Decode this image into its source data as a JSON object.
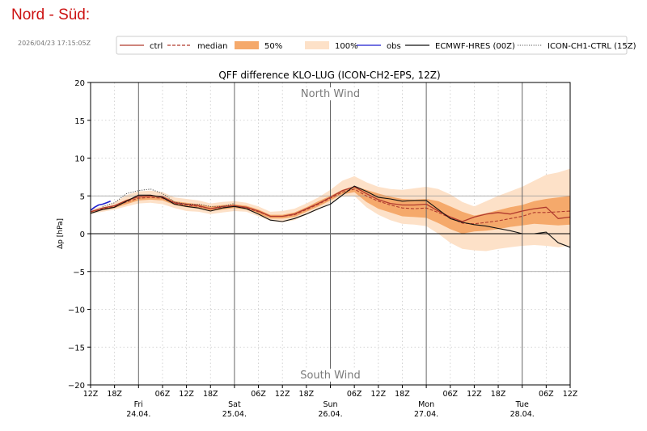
{
  "page": {
    "title": "Nord - Süd:",
    "timestamp": "2026/04/23 17:15:05Z"
  },
  "legend": {
    "items": [
      {
        "label": "ctrl",
        "style": "solid-line",
        "color": "#b03a2e"
      },
      {
        "label": "median",
        "style": "dashed-line",
        "color": "#b03a2e"
      },
      {
        "label": "50%",
        "style": "fill",
        "color": "#f5a96b"
      },
      {
        "label": "100%",
        "style": "fill",
        "color": "#fde1c8"
      },
      {
        "label": "obs",
        "style": "solid-line",
        "color": "#1f1fd0"
      },
      {
        "label": "ECMWF-HRES (00Z)",
        "style": "solid-line",
        "color": "#111111"
      },
      {
        "label": "ICON-CH1-CTRL (15Z)",
        "style": "dotted-line",
        "color": "#555555"
      }
    ]
  },
  "chart_data": {
    "type": "line",
    "title": "QFF difference KLO-LUG (ICON-CH2-EPS, 12Z)",
    "ylabel": "Δp [hPa]",
    "xlabel": "",
    "ylim": [
      -20,
      20
    ],
    "xlim": [
      0,
      120
    ],
    "x_unit": "hours since 2026-04-23 12Z",
    "yticks": [
      -20,
      -15,
      -10,
      -5,
      0,
      5,
      10,
      15,
      20
    ],
    "ytick_labels": [
      "−20",
      "−15",
      "−10",
      "−5",
      "0",
      "5",
      "10",
      "15",
      "20"
    ],
    "xticks": [
      {
        "x": 0,
        "label": "12Z"
      },
      {
        "x": 6,
        "label": "18Z"
      },
      {
        "x": 18,
        "label": "06Z"
      },
      {
        "x": 24,
        "label": "12Z"
      },
      {
        "x": 30,
        "label": "18Z"
      },
      {
        "x": 42,
        "label": "06Z"
      },
      {
        "x": 48,
        "label": "12Z"
      },
      {
        "x": 54,
        "label": "18Z"
      },
      {
        "x": 66,
        "label": "06Z"
      },
      {
        "x": 72,
        "label": "12Z"
      },
      {
        "x": 78,
        "label": "18Z"
      },
      {
        "x": 90,
        "label": "06Z"
      },
      {
        "x": 96,
        "label": "12Z"
      },
      {
        "x": 102,
        "label": "18Z"
      },
      {
        "x": 114,
        "label": "06Z"
      },
      {
        "x": 120,
        "label": "12Z"
      }
    ],
    "day_labels": [
      {
        "x": 12,
        "day": "Fri",
        "date": "24.04."
      },
      {
        "x": 36,
        "day": "Sat",
        "date": "25.04."
      },
      {
        "x": 60,
        "day": "Sun",
        "date": "26.04."
      },
      {
        "x": 84,
        "day": "Mon",
        "date": "27.04."
      },
      {
        "x": 108,
        "day": "Tue",
        "date": "28.04."
      }
    ],
    "day_lines": [
      12,
      36,
      60,
      84,
      108
    ],
    "reference_lines": [
      {
        "y": 0,
        "style": "solid",
        "color": "#000000"
      },
      {
        "y": 5,
        "style": "solid",
        "color": "#999999"
      },
      {
        "y": -5,
        "style": "solid",
        "color": "#999999"
      }
    ],
    "annotations": [
      {
        "text": "North Wind",
        "x": 60,
        "y": 18.6
      },
      {
        "text": "South Wind",
        "x": 60,
        "y": -18.6
      }
    ],
    "grid": true,
    "bands": [
      {
        "name": "100%",
        "color": "#fde1c8",
        "x": [
          0,
          6,
          9,
          12,
          15,
          18,
          21,
          24,
          27,
          30,
          33,
          36,
          39,
          42,
          45,
          48,
          51,
          54,
          57,
          60,
          63,
          66,
          69,
          72,
          75,
          78,
          81,
          84,
          87,
          90,
          93,
          96,
          99,
          102,
          105,
          108,
          111,
          114,
          117,
          120
        ],
        "upper": [
          3.2,
          4.1,
          5.1,
          5.6,
          5.7,
          5.5,
          4.8,
          4.6,
          4.4,
          4.0,
          4.2,
          4.3,
          4.1,
          3.6,
          2.9,
          3.0,
          3.3,
          4.0,
          4.8,
          5.8,
          7.0,
          7.6,
          6.8,
          6.2,
          5.9,
          5.8,
          6.0,
          6.2,
          5.9,
          5.2,
          4.2,
          3.6,
          4.3,
          5.0,
          5.6,
          6.2,
          7.0,
          7.8,
          8.1,
          8.6
        ],
        "lower": [
          2.6,
          3.2,
          3.6,
          4.0,
          4.1,
          3.9,
          3.4,
          3.0,
          2.9,
          2.6,
          2.8,
          3.0,
          2.9,
          2.3,
          1.7,
          1.5,
          1.8,
          2.5,
          3.2,
          4.1,
          4.9,
          5.0,
          3.5,
          2.5,
          1.8,
          1.3,
          1.2,
          1.0,
          0.0,
          -1.2,
          -2.0,
          -2.2,
          -2.3,
          -2.0,
          -1.8,
          -1.6,
          -1.5,
          -1.6,
          -1.8,
          -1.6
        ]
      },
      {
        "name": "50%",
        "color": "#f5a96b",
        "x": [
          0,
          6,
          9,
          12,
          15,
          18,
          21,
          24,
          27,
          30,
          33,
          36,
          39,
          42,
          45,
          48,
          51,
          54,
          57,
          60,
          63,
          66,
          69,
          72,
          75,
          78,
          81,
          84,
          87,
          90,
          93,
          96,
          99,
          102,
          105,
          108,
          111,
          114,
          117,
          120
        ],
        "upper": [
          3.0,
          3.8,
          4.5,
          5.0,
          5.1,
          5.0,
          4.3,
          4.1,
          3.9,
          3.6,
          3.8,
          3.9,
          3.7,
          3.2,
          2.5,
          2.5,
          2.8,
          3.5,
          4.3,
          5.0,
          5.8,
          6.3,
          5.8,
          5.3,
          4.9,
          4.6,
          4.5,
          4.6,
          4.3,
          3.6,
          2.9,
          2.4,
          2.7,
          3.1,
          3.5,
          3.8,
          4.3,
          4.6,
          4.8,
          5.0
        ],
        "lower": [
          2.8,
          3.4,
          3.9,
          4.4,
          4.5,
          4.4,
          3.8,
          3.5,
          3.3,
          3.0,
          3.2,
          3.4,
          3.2,
          2.6,
          2.0,
          2.0,
          2.2,
          2.9,
          3.6,
          4.4,
          5.2,
          5.5,
          4.2,
          3.3,
          2.8,
          2.3,
          2.2,
          2.1,
          1.4,
          0.6,
          0.0,
          0.3,
          0.4,
          0.6,
          0.9,
          1.1,
          1.3,
          1.2,
          1.1,
          1.2
        ]
      }
    ],
    "series": [
      {
        "name": "median",
        "color": "#b03a2e",
        "dash": "4,2",
        "width": 1.1,
        "x": [
          0,
          3,
          6,
          9,
          12,
          15,
          18,
          21,
          24,
          27,
          30,
          33,
          36,
          39,
          42,
          45,
          48,
          51,
          54,
          57,
          60,
          63,
          66,
          69,
          72,
          75,
          78,
          81,
          84,
          87,
          90,
          93,
          96,
          99,
          102,
          105,
          108,
          111,
          114,
          117,
          120
        ],
        "y": [
          2.9,
          3.3,
          3.6,
          4.2,
          4.7,
          4.8,
          4.7,
          4.0,
          3.8,
          3.6,
          3.3,
          3.5,
          3.6,
          3.4,
          2.9,
          2.3,
          2.3,
          2.5,
          3.2,
          3.9,
          4.7,
          5.5,
          5.9,
          5.0,
          4.3,
          3.8,
          3.4,
          3.3,
          3.4,
          2.8,
          2.1,
          1.4,
          1.3,
          1.5,
          1.7,
          2.0,
          2.3,
          2.8,
          2.8,
          2.9,
          3.0
        ]
      },
      {
        "name": "ctrl",
        "color": "#b03a2e",
        "dash": "",
        "width": 1.3,
        "x": [
          0,
          3,
          6,
          9,
          12,
          15,
          18,
          21,
          24,
          27,
          30,
          33,
          36,
          39,
          42,
          45,
          48,
          51,
          54,
          57,
          60,
          63,
          66,
          69,
          72,
          75,
          78,
          81,
          84,
          87,
          90,
          93,
          96,
          99,
          102,
          105,
          108,
          111,
          114,
          117,
          120
        ],
        "y": [
          2.9,
          3.4,
          3.7,
          4.4,
          4.9,
          5.0,
          4.9,
          4.1,
          3.9,
          3.7,
          3.3,
          3.6,
          3.7,
          3.5,
          3.0,
          2.3,
          2.3,
          2.6,
          3.3,
          4.0,
          4.8,
          5.7,
          6.2,
          5.3,
          4.5,
          4.0,
          3.8,
          3.8,
          3.9,
          3.0,
          2.2,
          1.6,
          2.2,
          2.6,
          2.8,
          2.6,
          3.0,
          3.3,
          3.5,
          2.0,
          2.2
        ]
      },
      {
        "name": "ECMWF-HRES (00Z)",
        "color": "#111111",
        "dash": "",
        "width": 1.1,
        "x": [
          0,
          3,
          6,
          9,
          12,
          15,
          18,
          21,
          24,
          27,
          30,
          33,
          36,
          39,
          42,
          45,
          48,
          51,
          54,
          57,
          60,
          63,
          66,
          69,
          72,
          75,
          78,
          81,
          84,
          87,
          90,
          93,
          96,
          99,
          102,
          105,
          108,
          111,
          114,
          117,
          120
        ],
        "y": [
          2.7,
          3.2,
          3.5,
          4.3,
          5.1,
          5.1,
          4.8,
          3.9,
          3.6,
          3.4,
          3.0,
          3.4,
          3.6,
          3.3,
          2.6,
          1.8,
          1.6,
          2.0,
          2.6,
          3.3,
          3.9,
          5.1,
          6.3,
          5.6,
          4.8,
          4.6,
          4.3,
          4.4,
          4.4,
          3.2,
          2.0,
          1.5,
          1.2,
          1.0,
          0.7,
          0.4,
          0.0,
          0.0,
          0.2,
          -1.2,
          -1.8
        ]
      },
      {
        "name": "ICON-CH1-CTRL (15Z)",
        "color": "#444444",
        "dash": "1.2,1.6",
        "width": 0.9,
        "x": [
          3,
          6,
          9,
          12,
          15,
          18,
          21,
          24,
          27,
          30,
          33,
          36
        ],
        "y": [
          3.6,
          4.1,
          5.3,
          5.7,
          5.9,
          5.3,
          4.2,
          3.9,
          3.9,
          3.6,
          3.6,
          4.0
        ]
      },
      {
        "name": "obs",
        "color": "#1f1fd0",
        "dash": "",
        "width": 1.6,
        "x": [
          0,
          1,
          2,
          3,
          4,
          5
        ],
        "y": [
          3.1,
          3.5,
          3.8,
          3.9,
          4.1,
          4.3
        ]
      }
    ]
  }
}
